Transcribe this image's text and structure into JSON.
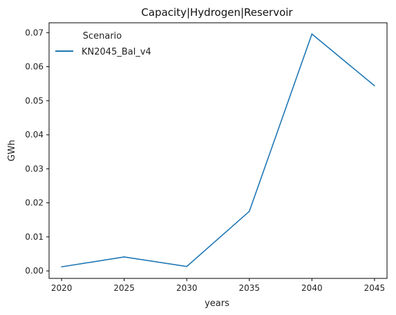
{
  "chart_data": {
    "type": "line",
    "title": "Capacity|Hydrogen|Reservoir",
    "xlabel": "years",
    "ylabel": "GWh",
    "x": [
      2020,
      2025,
      2030,
      2035,
      2040,
      2045
    ],
    "x_ticks": [
      2020,
      2025,
      2030,
      2035,
      2040,
      2045
    ],
    "y_ticks": [
      0.0,
      0.01,
      0.02,
      0.03,
      0.04,
      0.05,
      0.06,
      0.07
    ],
    "y_tick_labels": [
      "0.00",
      "0.01",
      "0.02",
      "0.03",
      "0.04",
      "0.05",
      "0.06",
      "0.07"
    ],
    "xlim": [
      2019,
      2046
    ],
    "ylim": [
      -0.0022,
      0.0729
    ],
    "grid": false,
    "legend": {
      "title": "Scenario",
      "placement": "top-left"
    },
    "series": [
      {
        "name": "KN2045_Bal_v4",
        "color": "#1f77b4",
        "values": [
          0.0012,
          0.0041,
          0.0013,
          0.0175,
          0.0696,
          0.0544
        ]
      }
    ]
  }
}
